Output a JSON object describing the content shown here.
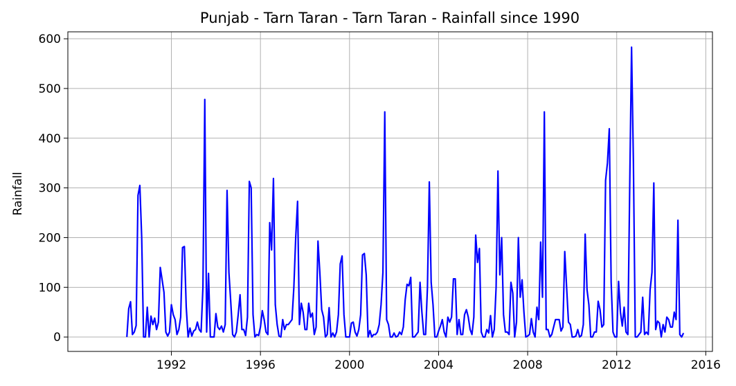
{
  "chart_data": {
    "type": "line",
    "title": "Punjab - Tarn Taran - Tarn Taran - Rainfall since 1990",
    "xlabel": "",
    "ylabel": "Rainfall",
    "xlim": [
      1987.35,
      2016.3
    ],
    "ylim": [
      -29,
      614
    ],
    "x_ticks": [
      1992,
      1996,
      2000,
      2004,
      2008,
      2012,
      2016
    ],
    "y_ticks": [
      0,
      100,
      200,
      300,
      400,
      500,
      600
    ],
    "grid": true,
    "series": [
      {
        "color": "#0000ff",
        "x_start": 1990.0,
        "x_step": 0.0833333,
        "values": [
          0,
          57,
          71,
          5,
          10,
          23,
          285,
          305,
          200,
          0,
          0,
          60,
          0,
          42,
          25,
          38,
          15,
          30,
          140,
          115,
          90,
          10,
          2,
          10,
          65,
          45,
          35,
          5,
          15,
          40,
          180,
          182,
          60,
          0,
          18,
          2,
          12,
          15,
          30,
          15,
          10,
          100,
          478,
          10,
          128,
          0,
          0,
          0,
          47,
          20,
          15,
          22,
          10,
          25,
          295,
          130,
          70,
          5,
          0,
          10,
          45,
          85,
          15,
          15,
          3,
          40,
          313,
          300,
          45,
          0,
          5,
          3,
          20,
          53,
          35,
          10,
          5,
          230,
          175,
          319,
          65,
          25,
          2,
          0,
          35,
          15,
          25,
          25,
          30,
          35,
          100,
          200,
          273,
          25,
          68,
          50,
          15,
          15,
          68,
          40,
          48,
          5,
          20,
          193,
          130,
          55,
          40,
          0,
          5,
          59,
          0,
          8,
          0,
          10,
          45,
          147,
          163,
          45,
          0,
          0,
          0,
          28,
          30,
          10,
          2,
          15,
          45,
          165,
          168,
          125,
          0,
          13,
          0,
          5,
          5,
          10,
          25,
          65,
          130,
          453,
          35,
          25,
          0,
          0,
          8,
          0,
          2,
          10,
          5,
          20,
          75,
          106,
          103,
          120,
          0,
          0,
          5,
          10,
          110,
          50,
          5,
          5,
          100,
          312,
          110,
          65,
          0,
          0,
          12,
          22,
          35,
          10,
          0,
          40,
          30,
          40,
          117,
          117,
          5,
          35,
          5,
          5,
          45,
          55,
          40,
          15,
          5,
          40,
          205,
          150,
          178,
          10,
          0,
          0,
          15,
          8,
          43,
          0,
          15,
          100,
          334,
          125,
          200,
          45,
          10,
          10,
          5,
          110,
          88,
          0,
          30,
          200,
          80,
          115,
          50,
          0,
          2,
          5,
          37,
          10,
          0,
          60,
          35,
          191,
          80,
          453,
          15,
          15,
          0,
          5,
          20,
          35,
          35,
          35,
          12,
          20,
          172,
          100,
          30,
          25,
          0,
          0,
          2,
          15,
          0,
          3,
          25,
          207,
          95,
          65,
          0,
          0,
          10,
          10,
          72,
          55,
          20,
          25,
          315,
          350,
          419,
          110,
          10,
          0,
          0,
          112,
          50,
          22,
          60,
          10,
          5,
          300,
          583,
          350,
          0,
          0,
          5,
          10,
          80,
          5,
          10,
          5,
          95,
          130,
          310,
          15,
          32,
          28,
          0,
          25,
          10,
          40,
          35,
          20,
          20,
          50,
          35,
          235,
          5,
          0,
          8
        ]
      }
    ]
  }
}
